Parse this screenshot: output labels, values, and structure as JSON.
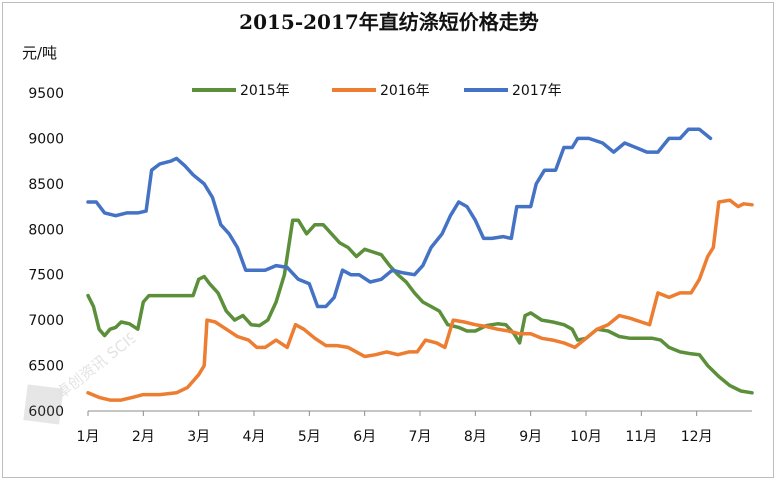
{
  "chart_data": {
    "type": "line",
    "title": "2015-2017年直纺涤短价格走势",
    "ylabel": "元/吨",
    "xlabel": "",
    "ylim": [
      6000,
      9500
    ],
    "yticks": [
      6000,
      6500,
      7000,
      7500,
      8000,
      8500,
      9000,
      9500
    ],
    "categories": [
      "1月",
      "2月",
      "3月",
      "4月",
      "5月",
      "6月",
      "7月",
      "8月",
      "9月",
      "10月",
      "11月",
      "12月"
    ],
    "x_unit": "月 (1 = 1月初)",
    "legend_position": "top",
    "grid": false,
    "series": [
      {
        "name": "2015年",
        "color": "#5b8f3a",
        "points": [
          [
            1.0,
            7270
          ],
          [
            1.1,
            7150
          ],
          [
            1.2,
            6900
          ],
          [
            1.3,
            6830
          ],
          [
            1.4,
            6900
          ],
          [
            1.5,
            6920
          ],
          [
            1.6,
            6980
          ],
          [
            1.75,
            6960
          ],
          [
            1.9,
            6900
          ],
          [
            2.0,
            7200
          ],
          [
            2.1,
            7270
          ],
          [
            2.5,
            7270
          ],
          [
            2.9,
            7270
          ],
          [
            3.0,
            7450
          ],
          [
            3.1,
            7480
          ],
          [
            3.2,
            7400
          ],
          [
            3.35,
            7300
          ],
          [
            3.5,
            7100
          ],
          [
            3.65,
            7000
          ],
          [
            3.8,
            7050
          ],
          [
            3.95,
            6950
          ],
          [
            4.1,
            6940
          ],
          [
            4.25,
            7000
          ],
          [
            4.4,
            7200
          ],
          [
            4.55,
            7500
          ],
          [
            4.7,
            8100
          ],
          [
            4.8,
            8100
          ],
          [
            4.95,
            7950
          ],
          [
            5.1,
            8050
          ],
          [
            5.25,
            8050
          ],
          [
            5.4,
            7950
          ],
          [
            5.55,
            7850
          ],
          [
            5.7,
            7800
          ],
          [
            5.85,
            7700
          ],
          [
            6.0,
            7780
          ],
          [
            6.15,
            7750
          ],
          [
            6.3,
            7720
          ],
          [
            6.45,
            7600
          ],
          [
            6.6,
            7500
          ],
          [
            6.75,
            7420
          ],
          [
            6.9,
            7300
          ],
          [
            7.05,
            7200
          ],
          [
            7.2,
            7150
          ],
          [
            7.35,
            7100
          ],
          [
            7.5,
            6950
          ],
          [
            7.7,
            6920
          ],
          [
            7.85,
            6880
          ],
          [
            8.0,
            6880
          ],
          [
            8.2,
            6940
          ],
          [
            8.4,
            6960
          ],
          [
            8.55,
            6950
          ],
          [
            8.7,
            6850
          ],
          [
            8.8,
            6750
          ],
          [
            8.9,
            7050
          ],
          [
            9.0,
            7080
          ],
          [
            9.2,
            7000
          ],
          [
            9.4,
            6980
          ],
          [
            9.6,
            6950
          ],
          [
            9.75,
            6900
          ],
          [
            9.85,
            6780
          ],
          [
            10.0,
            6800
          ],
          [
            10.2,
            6900
          ],
          [
            10.4,
            6880
          ],
          [
            10.6,
            6820
          ],
          [
            10.8,
            6800
          ],
          [
            11.0,
            6800
          ],
          [
            11.2,
            6800
          ],
          [
            11.35,
            6780
          ],
          [
            11.5,
            6700
          ],
          [
            11.7,
            6650
          ],
          [
            11.9,
            6630
          ],
          [
            12.05,
            6620
          ],
          [
            12.2,
            6500
          ],
          [
            12.4,
            6380
          ],
          [
            12.6,
            6280
          ],
          [
            12.8,
            6220
          ],
          [
            13.0,
            6200
          ]
        ]
      },
      {
        "name": "2016年",
        "color": "#ed7d31",
        "points": [
          [
            1.0,
            6200
          ],
          [
            1.2,
            6150
          ],
          [
            1.4,
            6120
          ],
          [
            1.6,
            6120
          ],
          [
            1.8,
            6150
          ],
          [
            2.0,
            6180
          ],
          [
            2.3,
            6180
          ],
          [
            2.6,
            6200
          ],
          [
            2.8,
            6260
          ],
          [
            3.0,
            6400
          ],
          [
            3.1,
            6500
          ],
          [
            3.15,
            7000
          ],
          [
            3.3,
            6980
          ],
          [
            3.5,
            6900
          ],
          [
            3.7,
            6820
          ],
          [
            3.9,
            6780
          ],
          [
            4.05,
            6700
          ],
          [
            4.2,
            6700
          ],
          [
            4.4,
            6780
          ],
          [
            4.6,
            6700
          ],
          [
            4.75,
            6950
          ],
          [
            4.9,
            6900
          ],
          [
            5.1,
            6800
          ],
          [
            5.3,
            6720
          ],
          [
            5.5,
            6720
          ],
          [
            5.7,
            6700
          ],
          [
            5.85,
            6650
          ],
          [
            6.0,
            6600
          ],
          [
            6.2,
            6620
          ],
          [
            6.4,
            6650
          ],
          [
            6.6,
            6620
          ],
          [
            6.8,
            6650
          ],
          [
            6.95,
            6650
          ],
          [
            7.1,
            6780
          ],
          [
            7.3,
            6750
          ],
          [
            7.45,
            6700
          ],
          [
            7.6,
            7000
          ],
          [
            7.8,
            6980
          ],
          [
            8.0,
            6950
          ],
          [
            8.2,
            6930
          ],
          [
            8.4,
            6900
          ],
          [
            8.6,
            6880
          ],
          [
            8.8,
            6850
          ],
          [
            9.0,
            6850
          ],
          [
            9.2,
            6800
          ],
          [
            9.4,
            6780
          ],
          [
            9.6,
            6750
          ],
          [
            9.8,
            6700
          ],
          [
            10.0,
            6800
          ],
          [
            10.2,
            6900
          ],
          [
            10.4,
            6950
          ],
          [
            10.6,
            7050
          ],
          [
            10.8,
            7020
          ],
          [
            11.0,
            6980
          ],
          [
            11.15,
            6950
          ],
          [
            11.3,
            7300
          ],
          [
            11.5,
            7250
          ],
          [
            11.7,
            7300
          ],
          [
            11.9,
            7300
          ],
          [
            12.05,
            7450
          ],
          [
            12.2,
            7700
          ],
          [
            12.3,
            7800
          ],
          [
            12.4,
            8300
          ],
          [
            12.6,
            8320
          ],
          [
            12.75,
            8250
          ],
          [
            12.85,
            8280
          ],
          [
            13.0,
            8270
          ]
        ]
      },
      {
        "name": "2017年",
        "color": "#4472c4",
        "points": [
          [
            1.0,
            8300
          ],
          [
            1.15,
            8300
          ],
          [
            1.3,
            8180
          ],
          [
            1.5,
            8150
          ],
          [
            1.7,
            8180
          ],
          [
            1.9,
            8180
          ],
          [
            2.05,
            8200
          ],
          [
            2.15,
            8650
          ],
          [
            2.3,
            8720
          ],
          [
            2.5,
            8750
          ],
          [
            2.6,
            8780
          ],
          [
            2.75,
            8700
          ],
          [
            2.9,
            8600
          ],
          [
            3.1,
            8500
          ],
          [
            3.25,
            8350
          ],
          [
            3.4,
            8050
          ],
          [
            3.55,
            7950
          ],
          [
            3.7,
            7800
          ],
          [
            3.85,
            7550
          ],
          [
            4.0,
            7550
          ],
          [
            4.2,
            7550
          ],
          [
            4.4,
            7600
          ],
          [
            4.6,
            7580
          ],
          [
            4.8,
            7450
          ],
          [
            5.0,
            7400
          ],
          [
            5.15,
            7150
          ],
          [
            5.3,
            7150
          ],
          [
            5.45,
            7250
          ],
          [
            5.6,
            7550
          ],
          [
            5.75,
            7500
          ],
          [
            5.9,
            7500
          ],
          [
            6.1,
            7420
          ],
          [
            6.3,
            7450
          ],
          [
            6.5,
            7550
          ],
          [
            6.7,
            7520
          ],
          [
            6.9,
            7500
          ],
          [
            7.05,
            7600
          ],
          [
            7.2,
            7800
          ],
          [
            7.4,
            7950
          ],
          [
            7.55,
            8150
          ],
          [
            7.7,
            8300
          ],
          [
            7.85,
            8250
          ],
          [
            8.0,
            8100
          ],
          [
            8.15,
            7900
          ],
          [
            8.3,
            7900
          ],
          [
            8.5,
            7920
          ],
          [
            8.65,
            7900
          ],
          [
            8.75,
            8250
          ],
          [
            9.0,
            8250
          ],
          [
            9.1,
            8500
          ],
          [
            9.25,
            8650
          ],
          [
            9.45,
            8650
          ],
          [
            9.6,
            8900
          ],
          [
            9.75,
            8900
          ],
          [
            9.85,
            9000
          ],
          [
            10.05,
            9000
          ],
          [
            10.3,
            8950
          ],
          [
            10.5,
            8850
          ],
          [
            10.7,
            8950
          ],
          [
            10.9,
            8900
          ],
          [
            11.1,
            8850
          ],
          [
            11.3,
            8850
          ],
          [
            11.5,
            9000
          ],
          [
            11.7,
            9000
          ],
          [
            11.85,
            9100
          ],
          [
            12.05,
            9100
          ],
          [
            12.15,
            9050
          ],
          [
            12.25,
            9000
          ]
        ]
      }
    ]
  },
  "watermark": {
    "text": "卓创资讯 SCI99.COM"
  }
}
